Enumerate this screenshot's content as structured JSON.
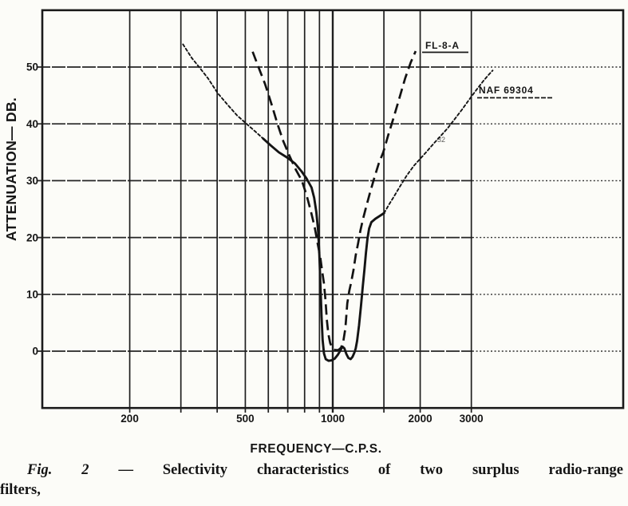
{
  "page": {
    "paper_color": "#fcfcf8",
    "ink_color": "#161616"
  },
  "chart_data": {
    "type": "line",
    "title": "",
    "xlabel": "FREQUENCY—C.P.S.",
    "ylabel": "ATTENUATION— DB.",
    "x_scale": "log",
    "xlim": [
      100,
      10000
    ],
    "ylim": [
      -10,
      60
    ],
    "grid": "on",
    "x_gridlines": [
      200,
      300,
      400,
      500,
      600,
      700,
      800,
      900,
      1000,
      1500,
      2000,
      3000
    ],
    "y_gridlines": [
      0,
      10,
      20,
      30,
      40,
      50
    ],
    "x_tick_labels": [
      {
        "f": 200,
        "label": "200"
      },
      {
        "f": 500,
        "label": "500"
      },
      {
        "f": 1000,
        "label": "1000"
      },
      {
        "f": 2000,
        "label": "2000"
      },
      {
        "f": 3000,
        "label": "3000"
      }
    ],
    "y_tick_labels": [
      {
        "db": 50,
        "label": "50"
      },
      {
        "db": 40,
        "label": "40"
      },
      {
        "db": 30,
        "label": "30"
      },
      {
        "db": 20,
        "label": "20"
      },
      {
        "db": 10,
        "label": "10"
      },
      {
        "db": 0,
        "label": "0"
      }
    ],
    "series": [
      {
        "name": "FL-8-A",
        "line_style": "long-dash",
        "points": [
          [
            530,
            52.7
          ],
          [
            555,
            50
          ],
          [
            585,
            47
          ],
          [
            615,
            43.5
          ],
          [
            645,
            40
          ],
          [
            675,
            37
          ],
          [
            708,
            34.5
          ],
          [
            745,
            32
          ],
          [
            783,
            30
          ],
          [
            812,
            27.5
          ],
          [
            842,
            24.5
          ],
          [
            867,
            21.8
          ],
          [
            887,
            19
          ],
          [
            906,
            16.5
          ],
          [
            920,
            14
          ],
          [
            932,
            12
          ],
          [
            944,
            9
          ],
          [
            954,
            5.5
          ],
          [
            966,
            3
          ],
          [
            980,
            1.4
          ],
          [
            998,
            0.5
          ],
          [
            1020,
            0.2
          ],
          [
            1045,
            0.2
          ],
          [
            1068,
            0.6
          ],
          [
            1088,
            1.8
          ],
          [
            1105,
            4
          ],
          [
            1122,
            8.4
          ],
          [
            1140,
            10.6
          ],
          [
            1156,
            12
          ],
          [
            1178,
            14.2
          ],
          [
            1200,
            16.9
          ],
          [
            1223,
            19
          ],
          [
            1245,
            21.2
          ],
          [
            1272,
            23.3
          ],
          [
            1300,
            25.2
          ],
          [
            1342,
            27.8
          ],
          [
            1390,
            30.5
          ],
          [
            1440,
            33
          ],
          [
            1492,
            35
          ],
          [
            1552,
            38
          ],
          [
            1618,
            41
          ],
          [
            1695,
            44.5
          ],
          [
            1775,
            48
          ],
          [
            1855,
            50.8
          ],
          [
            1930,
            52.8
          ]
        ]
      },
      {
        "name": "NAF 69304",
        "line_style": "fine-dash skirts, solid center",
        "segments": [
          {
            "style": "fine-dash",
            "points": [
              [
                305,
                54
              ],
              [
                327,
                51.6
              ],
              [
                348,
                49.9
              ],
              [
                372,
                48
              ],
              [
                402,
                45.4
              ],
              [
                434,
                43.4
              ],
              [
                468,
                41.5
              ],
              [
                505,
                40
              ],
              [
                540,
                38.7
              ],
              [
                576,
                37.4
              ]
            ]
          },
          {
            "style": "solid",
            "points": [
              [
                576,
                37.4
              ],
              [
                612,
                36.2
              ],
              [
                652,
                35
              ],
              [
                700,
                34
              ],
              [
                742,
                33
              ],
              [
                782,
                31.6
              ],
              [
                812,
                30.4
              ],
              [
                845,
                28.8
              ],
              [
                863,
                27
              ],
              [
                878,
                24.5
              ],
              [
                890,
                21.3
              ],
              [
                899,
                17
              ],
              [
                907,
                11.5
              ],
              [
                915,
                6
              ],
              [
                923,
                2
              ],
              [
                933,
                -0.4
              ],
              [
                946,
                -1.4
              ],
              [
                968,
                -1.7
              ],
              [
                992,
                -1.6
              ],
              [
                1016,
                -1.3
              ],
              [
                1042,
                -0.6
              ],
              [
                1064,
                0.2
              ],
              [
                1080,
                0.8
              ],
              [
                1096,
                0.5
              ],
              [
                1114,
                -0.5
              ],
              [
                1132,
                -1.2
              ],
              [
                1152,
                -1.4
              ],
              [
                1170,
                -1
              ],
              [
                1186,
                -0.3
              ],
              [
                1200,
                0.5
              ],
              [
                1213,
                1.8
              ],
              [
                1231,
                4.5
              ],
              [
                1251,
                8
              ],
              [
                1269,
                11.5
              ],
              [
                1286,
                14.5
              ],
              [
                1301,
                17.3
              ],
              [
                1317,
                19.8
              ],
              [
                1334,
                21.6
              ],
              [
                1358,
                22.7
              ],
              [
                1402,
                23.3
              ],
              [
                1452,
                23.8
              ],
              [
                1502,
                24.3
              ]
            ]
          },
          {
            "style": "fine-dash",
            "points": [
              [
                1502,
                24.3
              ],
              [
                1562,
                25.8
              ],
              [
                1624,
                27.2
              ],
              [
                1705,
                29
              ],
              [
                1798,
                30.9
              ],
              [
                1900,
                32.6
              ],
              [
                2004,
                33.9
              ],
              [
                2112,
                35.2
              ],
              [
                2232,
                36.6
              ],
              [
                2355,
                37.9
              ],
              [
                2484,
                39.2
              ],
              [
                2625,
                40.8
              ],
              [
                2784,
                42.5
              ],
              [
                2952,
                44.3
              ],
              [
                3125,
                46
              ],
              [
                3305,
                47.6
              ],
              [
                3435,
                48.6
              ],
              [
                3552,
                49.4
              ]
            ]
          }
        ]
      }
    ]
  },
  "caption": {
    "fig_label": "Fig. 2",
    "separator": "—",
    "line1": "Selectivity characteristics of two surplus radio-range",
    "line2": "filters,"
  },
  "artifacts": {
    "smudge_text": "32"
  }
}
